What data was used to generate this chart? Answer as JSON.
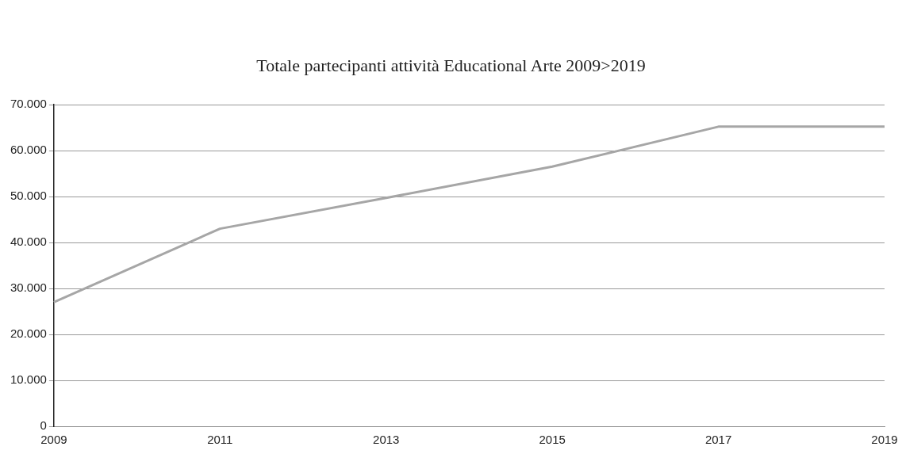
{
  "chart_data": {
    "type": "line",
    "title": "Totale partecipanti attività Educational Arte 2009>2019",
    "categories": [
      "2009",
      "2011",
      "2013",
      "2015",
      "2017",
      "2019"
    ],
    "series": [
      {
        "color": "#a6a6a6",
        "values": [
          27000,
          43000,
          49700,
          56500,
          65200,
          65200
        ]
      }
    ],
    "ylim": [
      0,
      70000
    ],
    "yticks": [
      {
        "value": 0,
        "label": "0"
      },
      {
        "value": 10000,
        "label": "10.000"
      },
      {
        "value": 20000,
        "label": "20.000"
      },
      {
        "value": 30000,
        "label": "30.000"
      },
      {
        "value": 40000,
        "label": "40.000"
      },
      {
        "value": 50000,
        "label": "50.000"
      },
      {
        "value": 60000,
        "label": "60.000"
      },
      {
        "value": 70000,
        "label": "70.000"
      }
    ],
    "grid": "y",
    "legend": false,
    "marker": "none",
    "line_style": "solid"
  }
}
